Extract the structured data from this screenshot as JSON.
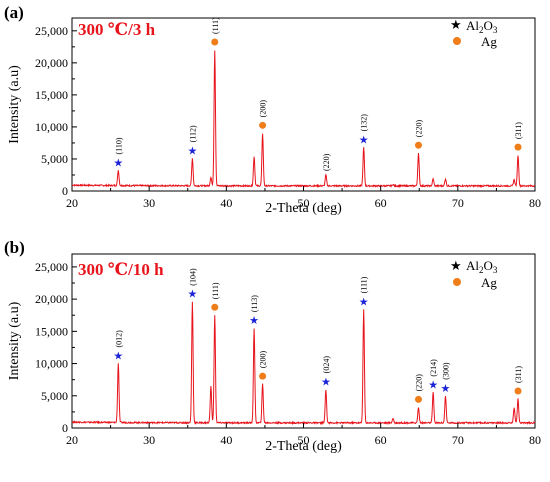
{
  "colors": {
    "pattern": "#e8141c",
    "al2o3": "#1a23d6",
    "ag": "#ef7d1a",
    "axis": "#000000"
  },
  "legend": {
    "al2o3_label": "Al2O3",
    "al2o3_main": "Al",
    "al2o3_sub1": "2",
    "al2o3_mid": "O",
    "al2o3_sub2": "3",
    "ag_label": "Ag"
  },
  "chart_data": [
    {
      "type": "line",
      "panel": "(a)",
      "condition": "300 ℃/3 h",
      "xlabel": "2-Theta (deg)",
      "ylabel": "Intensity (a.u)",
      "xlim": [
        20,
        80
      ],
      "ylim": [
        0,
        27000
      ],
      "xticks": [
        "20",
        "30",
        "40",
        "50",
        "60",
        "70",
        "80"
      ],
      "yticks": [
        "0",
        "5,000",
        "10,000",
        "15,000",
        "20,000",
        "25,000"
      ],
      "baseline": 800,
      "peaks": [
        {
          "x": 26.0,
          "y": 3200,
          "phase": "Al2O3",
          "hkl": "(110)"
        },
        {
          "x": 35.6,
          "y": 5100,
          "phase": "Al2O3",
          "hkl": "(112)"
        },
        {
          "x": 38.0,
          "y": 2200
        },
        {
          "x": 38.5,
          "y": 22000,
          "phase": "Ag",
          "hkl": "(111)"
        },
        {
          "x": 43.6,
          "y": 5400
        },
        {
          "x": 44.7,
          "y": 9000,
          "phase": "Ag",
          "hkl": "(200)"
        },
        {
          "x": 52.9,
          "y": 2500,
          "hkl": "(220)"
        },
        {
          "x": 57.8,
          "y": 6800,
          "phase": "Al2O3",
          "hkl": "(132)"
        },
        {
          "x": 61.6,
          "y": 1000
        },
        {
          "x": 64.9,
          "y": 5900,
          "phase": "Ag",
          "hkl": "(220)"
        },
        {
          "x": 66.8,
          "y": 1900
        },
        {
          "x": 68.4,
          "y": 1900
        },
        {
          "x": 77.3,
          "y": 1800
        },
        {
          "x": 77.8,
          "y": 5600,
          "phase": "Ag",
          "hkl": "(311)"
        }
      ]
    },
    {
      "type": "line",
      "panel": "(b)",
      "condition": "300 ℃/10 h",
      "xlabel": "2-Theta (deg)",
      "ylabel": "Intensity (a.u)",
      "xlim": [
        20,
        80
      ],
      "ylim": [
        0,
        27000
      ],
      "xticks": [
        "20",
        "30",
        "40",
        "50",
        "60",
        "70",
        "80"
      ],
      "yticks": [
        "0",
        "5,000",
        "10,000",
        "15,000",
        "20,000",
        "25,000"
      ],
      "baseline": 800,
      "peaks": [
        {
          "x": 26.0,
          "y": 10000,
          "phase": "Al2O3",
          "hkl": "(012)"
        },
        {
          "x": 35.6,
          "y": 19600,
          "phase": "Al2O3",
          "hkl": "(104)"
        },
        {
          "x": 38.0,
          "y": 6500
        },
        {
          "x": 38.5,
          "y": 17500,
          "phase": "Ag",
          "hkl": "(111)"
        },
        {
          "x": 43.6,
          "y": 15500,
          "phase": "Al2O3",
          "hkl": "(113)"
        },
        {
          "x": 44.7,
          "y": 6800,
          "phase": "Ag",
          "hkl": "(200)"
        },
        {
          "x": 52.9,
          "y": 6000,
          "phase": "Al2O3",
          "hkl": "(024)"
        },
        {
          "x": 57.8,
          "y": 18400,
          "phase": "Al2O3",
          "hkl": "(111)"
        },
        {
          "x": 61.6,
          "y": 1500
        },
        {
          "x": 64.9,
          "y": 3200,
          "phase": "Ag",
          "hkl": "(220)"
        },
        {
          "x": 66.8,
          "y": 5500,
          "phase": "Al2O3",
          "hkl": "(214)"
        },
        {
          "x": 68.4,
          "y": 5000,
          "phase": "Al2O3",
          "hkl": "(300)"
        },
        {
          "x": 77.3,
          "y": 3200
        },
        {
          "x": 77.8,
          "y": 4500,
          "phase": "Ag",
          "hkl": "(311)"
        }
      ]
    }
  ]
}
